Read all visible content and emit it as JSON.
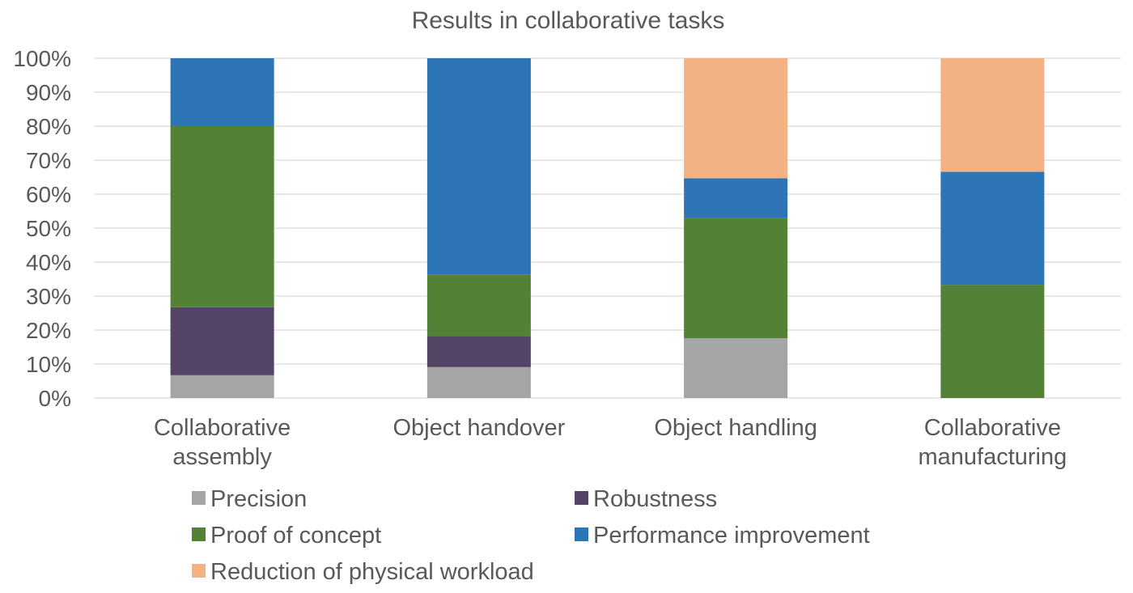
{
  "chart_data": {
    "type": "bar",
    "stacked": true,
    "normalized": true,
    "title": "Results in collaborative tasks",
    "xlabel": "",
    "ylabel": "",
    "ylim": [
      0,
      100
    ],
    "yticks": [
      "0%",
      "10%",
      "20%",
      "30%",
      "40%",
      "50%",
      "60%",
      "70%",
      "80%",
      "90%",
      "100%"
    ],
    "categories": [
      [
        "Collaborative",
        "assembly"
      ],
      [
        "Object handover"
      ],
      [
        "Object handling"
      ],
      [
        "Collaborative",
        "manufacturing"
      ]
    ],
    "series": [
      {
        "name": "Precision",
        "color": "#a5a5a5",
        "values": [
          6.7,
          9.1,
          17.6,
          0
        ]
      },
      {
        "name": "Robustness",
        "color": "#544567",
        "values": [
          20.0,
          9.1,
          0,
          0
        ]
      },
      {
        "name": "Proof of concept",
        "color": "#538135",
        "values": [
          53.3,
          18.2,
          35.3,
          33.3
        ]
      },
      {
        "name": "Performance improvement",
        "color": "#2e75b6",
        "values": [
          20.0,
          63.6,
          11.8,
          33.3
        ]
      },
      {
        "name": "Reduction of physical workload",
        "color": "#f4b183",
        "values": [
          0,
          0,
          35.3,
          33.4
        ]
      }
    ],
    "grid": true,
    "legend_position": "bottom"
  }
}
